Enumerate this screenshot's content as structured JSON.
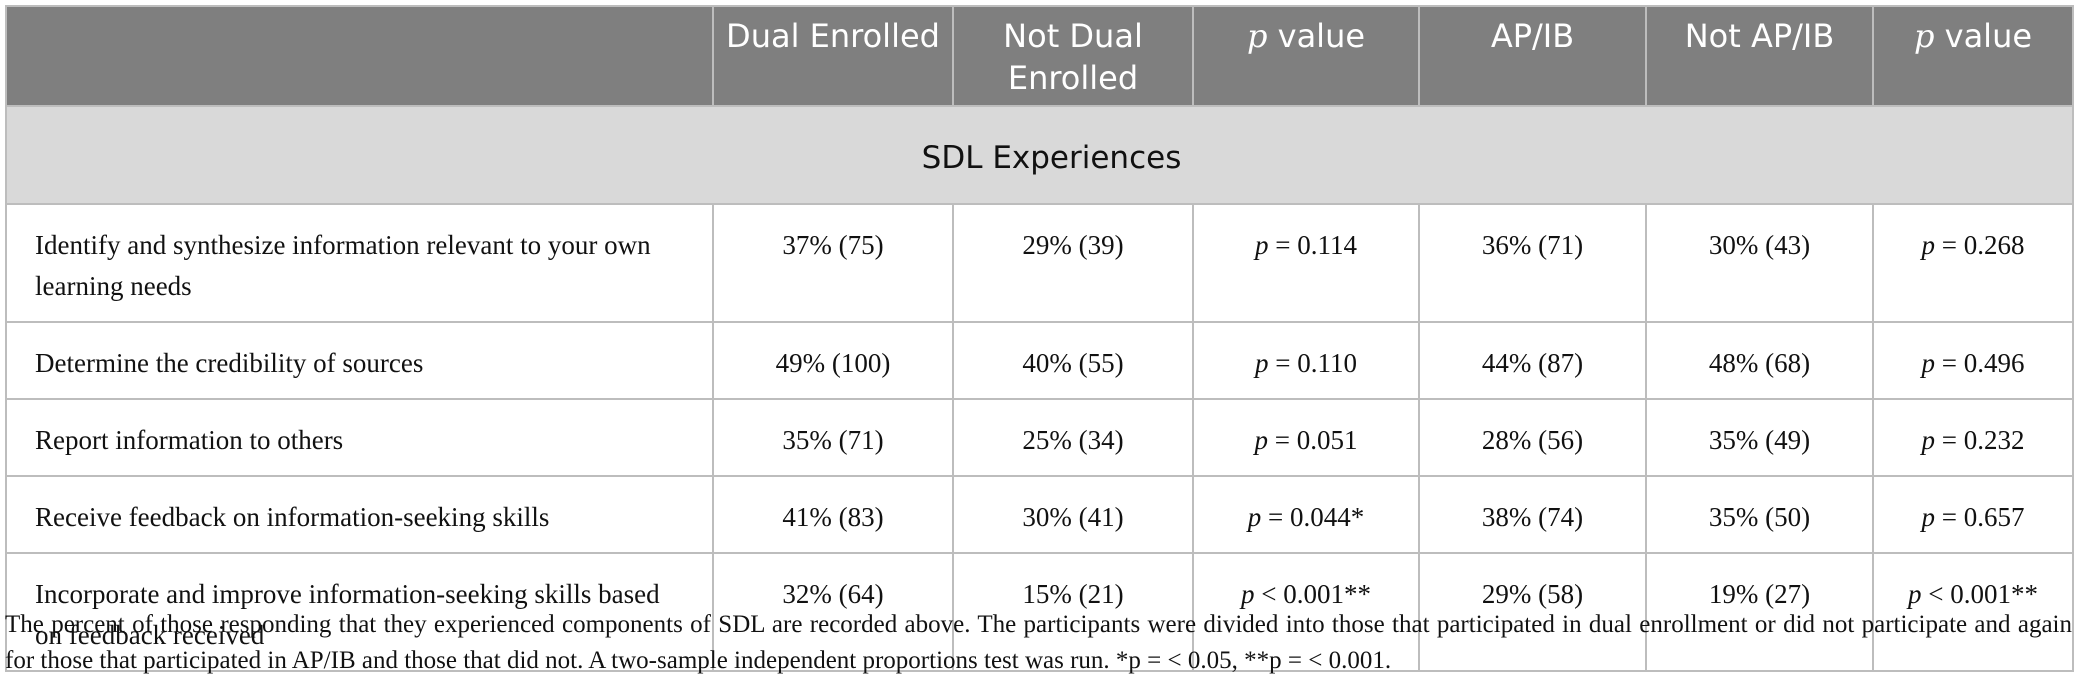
{
  "table": {
    "headers": [
      {
        "text": "",
        "italic_p": false
      },
      {
        "text": "Dual Enrolled",
        "italic_p": false
      },
      {
        "text": "Not Dual Enrolled",
        "italic_p": false
      },
      {
        "prefix": "p",
        "text": " value",
        "italic_p": true
      },
      {
        "text": "AP/IB",
        "italic_p": false
      },
      {
        "text": "Not AP/IB",
        "italic_p": false
      },
      {
        "prefix": "p",
        "text": " value",
        "italic_p": true
      }
    ],
    "section_label": "SDL Experiences",
    "rows": [
      {
        "label": "Identify and synthesize information relevant to your own learning needs",
        "dual": "37% (75)",
        "not_dual": "29% (39)",
        "p1": " = 0.114",
        "apib": "36% (71)",
        "not_apib": "30% (43)",
        "p2": " = 0.268"
      },
      {
        "label": "Determine the credibility of sources",
        "dual": "49% (100)",
        "not_dual": "40% (55)",
        "p1": " = 0.110",
        "apib": "44% (87)",
        "not_apib": "48% (68)",
        "p2": " = 0.496"
      },
      {
        "label": "Report information to others",
        "dual": "35% (71)",
        "not_dual": "25% (34)",
        "p1": " = 0.051",
        "apib": "28% (56)",
        "not_apib": "35% (49)",
        "p2": " = 0.232"
      },
      {
        "label": "Receive feedback on information-seeking skills",
        "dual": "41% (83)",
        "not_dual": "30% (41)",
        "p1": " = 0.044*",
        "apib": "38% (74)",
        "not_apib": "35% (50)",
        "p2": " = 0.657"
      },
      {
        "label": "Incorporate and improve information-seeking skills based on feedback received",
        "dual": "32% (64)",
        "not_dual": "15% (21)",
        "p1": " < 0.001**",
        "apib": "29% (58)",
        "not_apib": "19% (27)",
        "p2": " < 0.001**"
      }
    ],
    "p_symbol": "p"
  },
  "footnote": "The percent of those responding that they experienced components of SDL are recorded above. The participants were divided into those that participated in dual enrollment or did not participate and again for those that participated in AP/IB and those that did not. A two-sample independent proportions test was run. *p = < 0.05, **p = < 0.001."
}
